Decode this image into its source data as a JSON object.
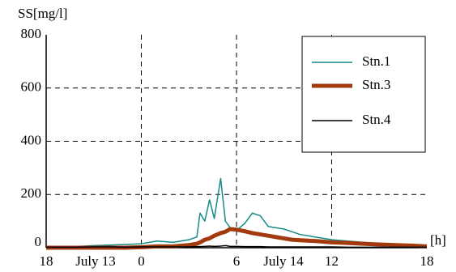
{
  "chart_data": {
    "type": "line",
    "y_label": "SS[mg/l]",
    "x_label": "[h]",
    "annotations": [
      "July 13",
      "July 14"
    ],
    "x": [
      -6,
      -5,
      -4,
      -3,
      -2,
      -1,
      0,
      1,
      2,
      3,
      3.5,
      3.7,
      4,
      4.3,
      4.6,
      5,
      5.3,
      5.6,
      6,
      6.5,
      7,
      7.5,
      8,
      8.5,
      9,
      9.5,
      10,
      11,
      12,
      13,
      14,
      15,
      16,
      17,
      18
    ],
    "series": [
      {
        "name": "Stn.1",
        "color": "#138a86",
        "width": 1.5,
        "values": [
          5,
          5,
          5,
          8,
          10,
          12,
          15,
          25,
          20,
          30,
          40,
          130,
          100,
          180,
          110,
          260,
          100,
          75,
          65,
          90,
          130,
          120,
          80,
          75,
          70,
          60,
          50,
          40,
          30,
          25,
          20,
          15,
          12,
          10,
          10
        ]
      },
      {
        "name": "Stn.3",
        "color": "#a33a0e",
        "width": 5,
        "values": [
          0,
          0,
          0,
          0,
          0,
          0,
          2,
          5,
          5,
          10,
          15,
          20,
          30,
          35,
          45,
          55,
          60,
          70,
          68,
          62,
          55,
          50,
          45,
          40,
          35,
          30,
          28,
          25,
          20,
          18,
          15,
          12,
          10,
          8,
          5
        ]
      },
      {
        "name": "Stn.4",
        "color": "#000000",
        "width": 1.5,
        "values": [
          2,
          2,
          2,
          3,
          3,
          2,
          3,
          3,
          3,
          3,
          4,
          4,
          5,
          6,
          5,
          6,
          8,
          5,
          5,
          4,
          4,
          4,
          3,
          3,
          3,
          3,
          3,
          3,
          3,
          2,
          2,
          2,
          2,
          2,
          2
        ]
      }
    ],
    "xlim": [
      -6,
      18
    ],
    "xticks": [
      {
        "value": -6,
        "label": "18"
      },
      0,
      6,
      12,
      18
    ],
    "ylim": [
      0,
      800
    ],
    "yticks": [
      0,
      200,
      400,
      600,
      800
    ],
    "grid": true,
    "legend": "upper right"
  }
}
